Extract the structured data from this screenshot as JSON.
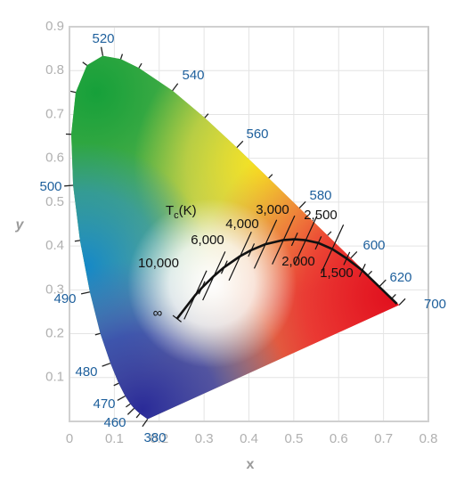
{
  "chart_data": {
    "type": "chromaticity",
    "xlabel": "x",
    "ylabel": "y",
    "xlim": [
      0,
      0.8
    ],
    "ylim": [
      0,
      0.9
    ],
    "xticks": [
      0,
      0.1,
      0.2,
      0.3,
      0.4,
      0.5,
      0.6,
      0.7,
      0.8
    ],
    "yticks": [
      0.1,
      0.2,
      0.3,
      0.4,
      0.5,
      0.6,
      0.7,
      0.8,
      0.9
    ],
    "grid": true,
    "spectral_locus": {
      "x": [
        0.1741,
        0.1566,
        0.144,
        0.1355,
        0.1241,
        0.1096,
        0.0913,
        0.0687,
        0.0454,
        0.0235,
        0.0082,
        0.0039,
        0.0139,
        0.0389,
        0.0743,
        0.1142,
        0.1547,
        0.2296,
        0.3016,
        0.3731,
        0.4441,
        0.5125,
        0.5752,
        0.627,
        0.6658,
        0.6915,
        0.719,
        0.7347
      ],
      "y": [
        0.005,
        0.0177,
        0.0297,
        0.0399,
        0.0578,
        0.0868,
        0.1327,
        0.2007,
        0.295,
        0.4127,
        0.5384,
        0.6548,
        0.7502,
        0.812,
        0.8338,
        0.8262,
        0.8059,
        0.7543,
        0.6923,
        0.6245,
        0.5547,
        0.4866,
        0.4242,
        0.3725,
        0.334,
        0.3083,
        0.2809,
        0.2653
      ],
      "labels": [
        380,
        null,
        460,
        null,
        470,
        null,
        480,
        null,
        490,
        null,
        500,
        null,
        null,
        null,
        520,
        null,
        null,
        540,
        null,
        560,
        null,
        580,
        null,
        600,
        null,
        620,
        null,
        700
      ]
    },
    "planckian_locus": {
      "title": "T",
      "title_sub": "c",
      "title_unit": "(K)",
      "x": [
        0.2399,
        0.2807,
        0.2952,
        0.3221,
        0.3451,
        0.3805,
        0.4053,
        0.4369,
        0.477,
        0.5018,
        0.5267,
        0.5546,
        0.5857,
        0.618,
        0.6528,
        0.73
      ],
      "y": [
        0.2342,
        0.2883,
        0.3048,
        0.3318,
        0.3516,
        0.3768,
        0.3907,
        0.4041,
        0.4137,
        0.4153,
        0.4133,
        0.407,
        0.3931,
        0.3715,
        0.3444,
        0.268
      ],
      "labels": [
        "∞",
        "10,000",
        null,
        "6,000",
        null,
        "4,000",
        null,
        "3,000",
        "2,500",
        null,
        "2,000",
        null,
        "1,500",
        null,
        null,
        null
      ]
    }
  }
}
